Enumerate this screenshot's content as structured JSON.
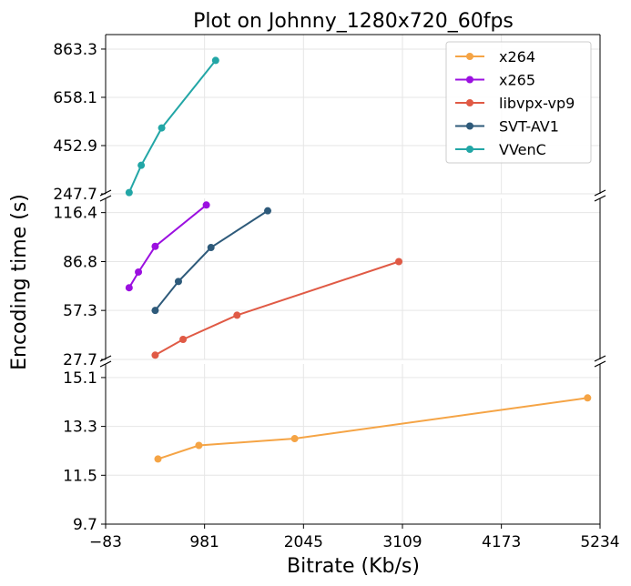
{
  "chart_data": {
    "type": "line",
    "title": "Plot on Johnny_1280x720_60fps",
    "xlabel": "Bitrate (Kb/s)",
    "ylabel": "Encoding time (s)",
    "xlim": [
      -83,
      5234
    ],
    "xticks": [
      "-83",
      "981",
      "2045",
      "3109",
      "4173",
      "5234"
    ],
    "xtick_values": [
      -83,
      981,
      2045,
      3109,
      4173,
      5234
    ],
    "grid": true,
    "legend_position": "top-right",
    "broken_y_axis": true,
    "panels": [
      {
        "id": "top",
        "ylim": [
          247.7,
          925
        ],
        "yticks": [
          "247.7",
          "452.9",
          "658.1",
          "863.3"
        ],
        "ytick_values": [
          247.7,
          452.9,
          658.1,
          863.3
        ]
      },
      {
        "id": "middle",
        "ylim": [
          27.7,
          125
        ],
        "yticks": [
          "27.7",
          "57.3",
          "86.8",
          "116.4"
        ],
        "ytick_values": [
          27.7,
          57.3,
          86.8,
          116.4
        ]
      },
      {
        "id": "bottom",
        "ylim": [
          9.7,
          15.6
        ],
        "yticks": [
          "9.7",
          "11.5",
          "13.3",
          "15.1"
        ],
        "ytick_values": [
          9.7,
          11.5,
          13.3,
          15.1
        ]
      }
    ],
    "series": [
      {
        "name": "x264",
        "color": "#F5A445",
        "panel": "bottom",
        "x": [
          480,
          920,
          1950,
          5100
        ],
        "y": [
          12.1,
          12.6,
          12.85,
          14.35
        ]
      },
      {
        "name": "x265",
        "color": "#9B10E0",
        "panel": "middle",
        "x": [
          170,
          270,
          450,
          1000
        ],
        "y": [
          71,
          80.5,
          96,
          121
        ]
      },
      {
        "name": "libvpx-vp9",
        "color": "#E05A45",
        "panel": "middle",
        "x": [
          450,
          750,
          1330,
          3070
        ],
        "y": [
          30.3,
          39.8,
          54.4,
          86.8
        ]
      },
      {
        "name": "SVT-AV1",
        "color": "#2E5A7A",
        "panel": "middle",
        "x": [
          450,
          700,
          1050,
          1660
        ],
        "y": [
          57.3,
          74.8,
          95.3,
          117.5
        ]
      },
      {
        "name": "VVenC",
        "color": "#22A6A6",
        "panel": "top",
        "x": [
          170,
          300,
          520,
          1100
        ],
        "y": [
          253,
          369,
          528,
          815
        ]
      }
    ]
  }
}
